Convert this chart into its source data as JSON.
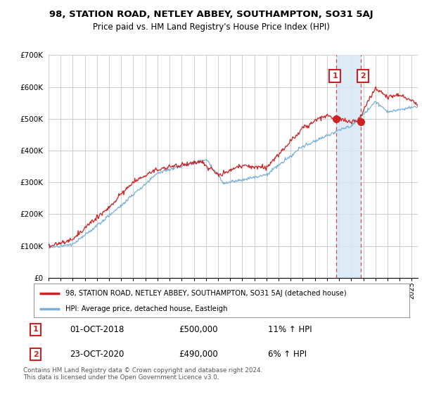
{
  "title": "98, STATION ROAD, NETLEY ABBEY, SOUTHAMPTON, SO31 5AJ",
  "subtitle": "Price paid vs. HM Land Registry's House Price Index (HPI)",
  "ylim": [
    0,
    700000
  ],
  "yticks": [
    0,
    100000,
    200000,
    300000,
    400000,
    500000,
    600000,
    700000
  ],
  "ytick_labels": [
    "£0",
    "£100K",
    "£200K",
    "£300K",
    "£400K",
    "£500K",
    "£600K",
    "£700K"
  ],
  "legend_line1": "98, STATION ROAD, NETLEY ABBEY, SOUTHAMPTON, SO31 5AJ (detached house)",
  "legend_line2": "HPI: Average price, detached house, Eastleigh",
  "line1_color": "#cc2222",
  "line2_color": "#7ab0d8",
  "annotation1_date": "01-OCT-2018",
  "annotation1_price": "£500,000",
  "annotation1_hpi": "11% ↑ HPI",
  "annotation2_date": "23-OCT-2020",
  "annotation2_price": "£490,000",
  "annotation2_hpi": "6% ↑ HPI",
  "footer": "Contains HM Land Registry data © Crown copyright and database right 2024.\nThis data is licensed under the Open Government Licence v3.0.",
  "bg_color": "#ffffff",
  "grid_color": "#cccccc",
  "marker1_x": 2018.75,
  "marker2_x": 2020.81,
  "marker1_y": 500000,
  "marker2_y": 490000,
  "shade_x1": 2018.75,
  "shade_x2": 2020.81,
  "xlim_left": 1995,
  "xlim_right": 2025.5
}
